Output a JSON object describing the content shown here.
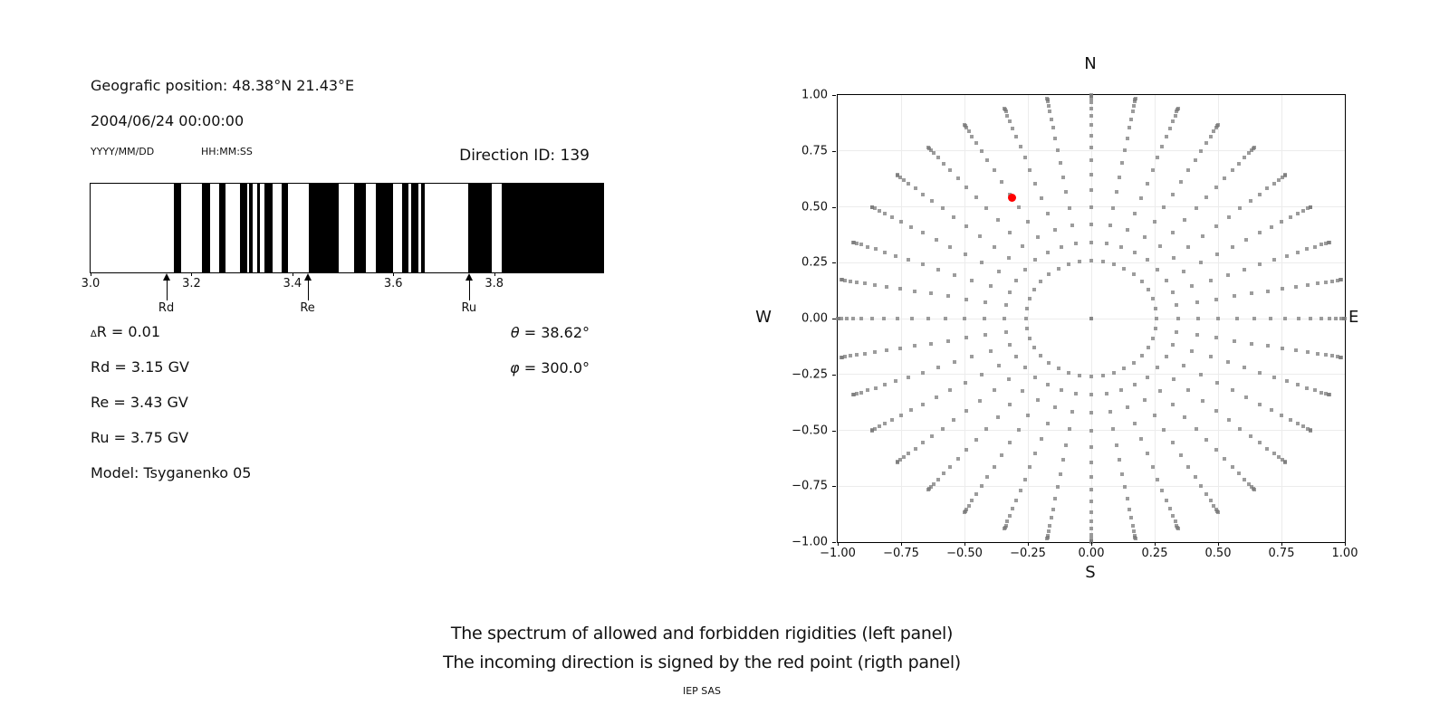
{
  "info": {
    "geographic_position": "Geografic position: 48.38°N 21.43°E",
    "datetime": "2004/06/24 00:00:00",
    "date_format_label": "YYYY/MM/DD",
    "time_format_label": "HH:MM:SS",
    "direction_id": "Direction ID: 139"
  },
  "values": {
    "delta_symbol": "∆",
    "delta_rest": "R = 0.01",
    "rd": "Rd = 3.15 GV",
    "re": "Re = 3.43 GV",
    "ru": "Ru = 3.75 GV",
    "model": "Model: Tsyganenko 05",
    "theta_symbol": "θ",
    "theta_rest": " = 38.62°",
    "phi_symbol": "φ",
    "phi_rest": " = 300.0°"
  },
  "caption": {
    "line1": "The spectrum of allowed and forbidden rigidities (left panel)",
    "line2": "The incoming direction is signed by the red point (rigth panel)",
    "credit": "IEP SAS"
  },
  "chart_data": [
    {
      "type": "bar",
      "subtype": "barcode-spectrum",
      "panel": "left",
      "description": "Spectrum of allowed (white) and forbidden (black) rigidities",
      "x_unit": "GV",
      "xlim": [
        3.0,
        4.016
      ],
      "x_ticks": [
        3.0,
        3.2,
        3.4,
        3.6,
        3.8
      ],
      "x_tick_labels": [
        "3.0",
        "3.2",
        "3.4",
        "3.6",
        "3.8"
      ],
      "forbidden_bands_gv": [
        [
          3.165,
          3.18
        ],
        [
          3.221,
          3.237
        ],
        [
          3.254,
          3.268
        ],
        [
          3.297,
          3.311
        ],
        [
          3.315,
          3.322
        ],
        [
          3.331,
          3.336
        ],
        [
          3.344,
          3.36
        ],
        [
          3.378,
          3.392
        ],
        [
          3.433,
          3.491
        ],
        [
          3.522,
          3.545
        ],
        [
          3.565,
          3.599
        ],
        [
          3.617,
          3.63
        ],
        [
          3.635,
          3.649
        ],
        [
          3.655,
          3.662
        ],
        [
          3.748,
          3.795
        ],
        [
          3.815,
          4.016
        ]
      ],
      "markers": [
        {
          "label": "Rd",
          "value_gv": 3.15
        },
        {
          "label": "Re",
          "value_gv": 3.43
        },
        {
          "label": "Ru",
          "value_gv": 3.75
        }
      ],
      "bar_color": "#000000",
      "background": "#ffffff"
    },
    {
      "type": "scatter",
      "subtype": "direction-map",
      "panel": "right",
      "compass_labels": {
        "top": "N",
        "bottom": "S",
        "left": "W",
        "right": "E"
      },
      "xlim": [
        -1.0,
        1.0
      ],
      "ylim": [
        -1.0,
        1.0
      ],
      "x_tick_labels": [
        "−1.00",
        "−0.75",
        "−0.50",
        "−0.25",
        "0.00",
        "0.25",
        "0.50",
        "0.75",
        "1.00"
      ],
      "y_tick_labels": [
        "1.00",
        "0.75",
        "0.50",
        "0.25",
        "0.00",
        "−0.25",
        "−0.50",
        "−0.75",
        "−1.00"
      ],
      "tick_step": 0.25,
      "grid": true,
      "grid_color": "#ececec",
      "dot_grid_rule": "rays every 10° of azimuth; along each ray dots at radius r = sin(zenith) for zenith 15°..90° in 5° steps; plus one dot at the center (0,0)",
      "ray_azimuth_deg": {
        "start": 0,
        "stop": 350,
        "step": 10
      },
      "ray_zenith_deg": {
        "start": 15,
        "stop": 90,
        "step": 5
      },
      "center_point": [
        0.0,
        0.0
      ],
      "dot_color": "#999999",
      "red_point": {
        "x": -0.312,
        "y": 0.54,
        "color": "#ff0000"
      }
    }
  ]
}
